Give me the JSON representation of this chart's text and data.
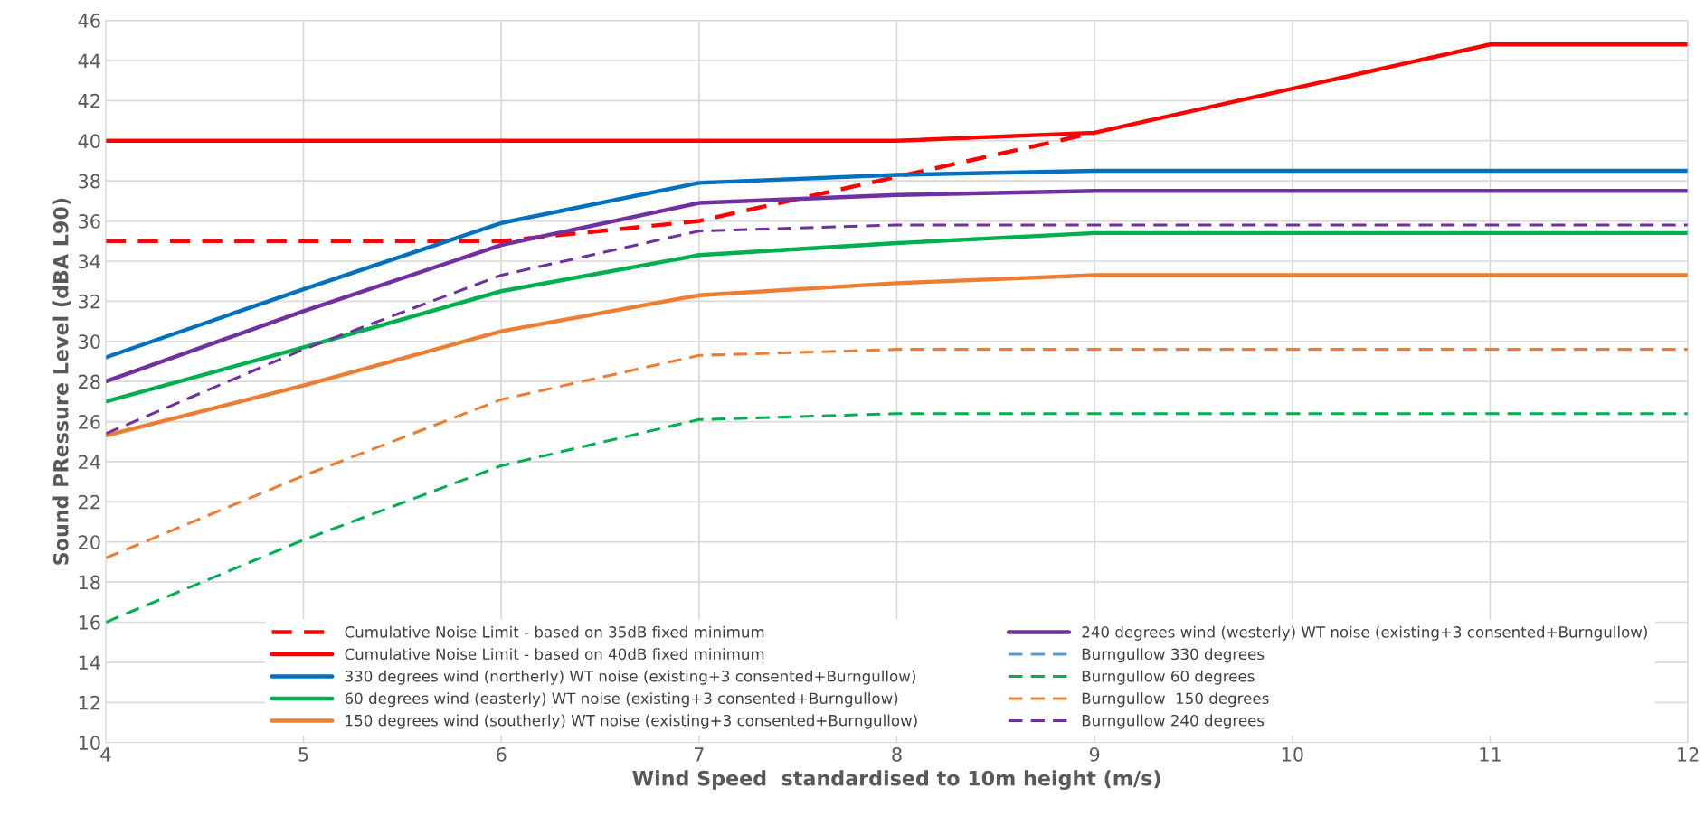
{
  "chart_data": {
    "type": "line",
    "xlabel": "Wind Speed  standardised to 10m height (m/s)",
    "ylabel": "Sound PRessure Level (dBA L90)",
    "x": [
      4,
      5,
      6,
      7,
      8,
      9,
      10,
      11,
      12
    ],
    "series": [
      {
        "name": "Cumulative Noise Limit - based on 35dB fixed minimum",
        "color": "#ff0000",
        "line_style": "dashed",
        "values": [
          35,
          35,
          35,
          36,
          38.2,
          40.4,
          null,
          null,
          null
        ]
      },
      {
        "name": "Cumulative Noise Limit - based on 40dB fixed minimum",
        "color": "#ff0000",
        "line_style": "solid",
        "values": [
          40,
          40,
          40,
          40,
          40,
          40.4,
          42.6,
          44.8,
          44.8
        ]
      },
      {
        "name": "330 degrees wind (northerly) WT noise (existing+3 consented+Burngullow)",
        "color": "#0070c0",
        "line_style": "solid",
        "values": [
          29.2,
          32.6,
          35.9,
          37.9,
          38.3,
          38.5,
          38.5,
          38.5,
          38.5
        ]
      },
      {
        "name": "60 degrees wind (easterly) WT noise (existing+3 consented+Burngullow)",
        "color": "#00b050",
        "line_style": "solid",
        "values": [
          27.0,
          29.7,
          32.5,
          34.3,
          34.9,
          35.4,
          35.4,
          35.4,
          35.4
        ]
      },
      {
        "name": "150 degrees wind (southerly) WT noise (existing+3 consented+Burngullow)",
        "color": "#ed7d31",
        "line_style": "solid",
        "values": [
          25.3,
          27.8,
          30.5,
          32.3,
          32.9,
          33.3,
          33.3,
          33.3,
          33.3
        ]
      },
      {
        "name": "240 degrees wind (westerly) WT noise (existing+3 consented+Burngullow)",
        "color": "#7030a0",
        "line_style": "solid",
        "values": [
          28.0,
          31.5,
          34.8,
          36.9,
          37.3,
          37.5,
          37.5,
          37.5,
          37.5
        ]
      },
      {
        "name": "Burngullow 330 degrees",
        "color": "#5b9bd5",
        "line_style": "dashed",
        "values": [
          null,
          null,
          null,
          null,
          null,
          null,
          null,
          null,
          null
        ]
      },
      {
        "name": "Burngullow 60 degrees",
        "color": "#00b050",
        "line_style": "dashed",
        "values": [
          16.0,
          20.1,
          23.8,
          26.1,
          26.4,
          26.4,
          26.4,
          26.4,
          26.4
        ]
      },
      {
        "name": "Burngullow  150 degrees",
        "color": "#ed7d31",
        "line_style": "dashed",
        "values": [
          19.2,
          23.3,
          27.1,
          29.3,
          29.6,
          29.6,
          29.6,
          29.6,
          29.6
        ]
      },
      {
        "name": "Burngullow 240 degrees",
        "color": "#7030a0",
        "line_style": "dashed",
        "values": [
          25.4,
          29.6,
          33.3,
          35.5,
          35.8,
          35.8,
          35.8,
          35.8,
          35.8
        ]
      }
    ],
    "xlim": [
      4,
      12
    ],
    "xticks": [
      4,
      5,
      6,
      7,
      8,
      9,
      10,
      11,
      12
    ],
    "ylim": [
      10,
      46
    ],
    "yticks": [
      10,
      12,
      14,
      16,
      18,
      20,
      22,
      24,
      26,
      28,
      30,
      32,
      34,
      36,
      38,
      40,
      42,
      44,
      46
    ],
    "grid": true,
    "legend": "bottom",
    "marker": "none"
  }
}
